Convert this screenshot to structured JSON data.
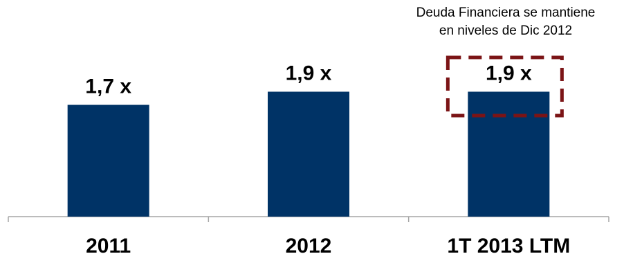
{
  "chart_data": {
    "type": "bar",
    "categories": [
      "2011",
      "2012",
      "1T 2013 LTM"
    ],
    "values": [
      1.7,
      1.9,
      1.9
    ],
    "data_labels": [
      "1,7 x",
      "1,9 x",
      "1,9 x"
    ],
    "title": "",
    "xlabel": "",
    "ylabel": "",
    "ylim": [
      0,
      2.0
    ],
    "grid": false,
    "legend": "none",
    "highlight_index": 2,
    "annotation": {
      "line1": "Deuda Financiera se mantiene",
      "line2": "en niveles de Dic 2012"
    }
  },
  "colors": {
    "bar": "#003366",
    "highlight_box": "#7b1416",
    "axis": "#a6a6a6",
    "text": "#000000"
  }
}
